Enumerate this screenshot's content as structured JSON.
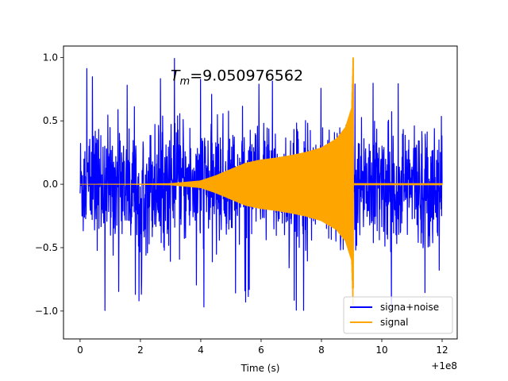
{
  "chart_data": {
    "type": "line",
    "title": "",
    "xlabel": "Time (s)",
    "ylabel": "",
    "x_offset_label": "+1e8",
    "xlim": [
      -0.55,
      12.5
    ],
    "ylim": [
      -1.22,
      1.09
    ],
    "x_ticks": [
      0,
      2,
      4,
      6,
      8,
      10,
      12
    ],
    "x_tick_labels": [
      "0",
      "2",
      "4",
      "6",
      "8",
      "10",
      "12"
    ],
    "y_ticks": [
      -1.0,
      -0.5,
      0.0,
      0.5,
      1.0
    ],
    "y_tick_labels": [
      "−1.0",
      "−0.5",
      "0.0",
      "0.5",
      "1.0"
    ],
    "grid": false,
    "legend_position": "lower-right",
    "annotation": {
      "var": "T",
      "sub": "m",
      "text": "=9.050976562",
      "x": 3.0,
      "y": 0.855
    },
    "series": [
      {
        "name": "signa+noise",
        "color": "#0000ff",
        "x_range": [
          0,
          12.0
        ],
        "typical_amplitude": 0.55,
        "peak_max": 1.0,
        "peak_min": -1.03
      },
      {
        "name": "signal",
        "color": "#ffa500",
        "x_range": [
          0,
          12.0
        ],
        "merger_time": 9.051,
        "envelope": {
          "x": [
            0,
            2,
            3,
            4,
            4.5,
            5,
            5.5,
            6,
            6.5,
            7,
            7.5,
            8,
            8.5,
            8.8,
            9.0,
            9.05
          ],
          "y": [
            0.002,
            0.004,
            0.008,
            0.03,
            0.07,
            0.12,
            0.17,
            0.195,
            0.21,
            0.23,
            0.255,
            0.29,
            0.36,
            0.45,
            0.6,
            1.0
          ]
        },
        "post_merger_amplitude": 0.008
      }
    ]
  }
}
